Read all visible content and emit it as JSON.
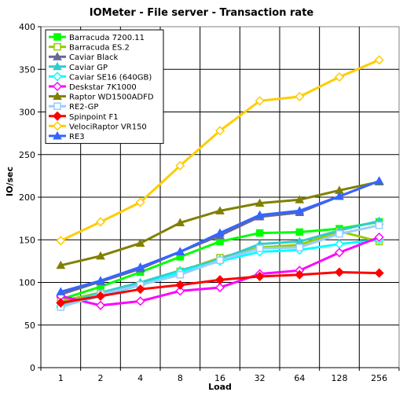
{
  "chart_data": {
    "type": "line",
    "title": "IOMeter - File server - Transaction rate",
    "xlabel": "Load",
    "ylabel": "IO/sec",
    "categories": [
      "1",
      "2",
      "4",
      "8",
      "16",
      "32",
      "64",
      "128",
      "256"
    ],
    "ylim": [
      0,
      400
    ],
    "yticks": [
      "0",
      "50",
      "100",
      "150",
      "200",
      "250",
      "300",
      "350",
      "400"
    ],
    "grid": true,
    "legend_position": "top-left",
    "series": [
      {
        "name": "Barracuda 7200.11",
        "color": "#00ff00",
        "marker": "square-filled",
        "values": [
          80,
          95,
          112,
          130,
          148,
          158,
          159,
          163,
          171
        ]
      },
      {
        "name": "Barracuda ES.2",
        "color": "#99cc00",
        "marker": "square-open",
        "values": [
          78,
          88,
          97,
          113,
          129,
          141,
          144,
          160,
          148
        ]
      },
      {
        "name": "Caviar Black",
        "color": "#666699",
        "marker": "triangle-filled",
        "values": [
          86,
          101,
          116,
          136,
          155,
          177,
          182,
          201,
          219
        ]
      },
      {
        "name": "Caviar GP",
        "color": "#33cccc",
        "marker": "triangle-filled",
        "values": [
          74,
          88,
          100,
          114,
          127,
          145,
          148,
          161,
          172
        ]
      },
      {
        "name": "Caviar SE16 (640GB)",
        "color": "#00ffff",
        "marker": "diamond-open",
        "values": [
          72,
          84,
          97,
          112,
          125,
          136,
          138,
          145,
          150
        ]
      },
      {
        "name": "Deskstar 7K1000",
        "color": "#ff00ff",
        "marker": "diamond-open",
        "values": [
          84,
          73,
          78,
          90,
          94,
          110,
          114,
          135,
          153
        ]
      },
      {
        "name": "Raptor WD1500ADFD",
        "color": "#808000",
        "marker": "triangle-filled",
        "values": [
          120,
          131,
          146,
          170,
          184,
          193,
          197,
          208,
          218
        ]
      },
      {
        "name": "RE2-GP",
        "color": "#99ccff",
        "marker": "square-open",
        "values": [
          71,
          86,
          97,
          109,
          126,
          140,
          141,
          157,
          167
        ]
      },
      {
        "name": "Spinpoint F1",
        "color": "#ff0000",
        "marker": "diamond-filled",
        "values": [
          76,
          84,
          92,
          97,
          103,
          107,
          109,
          112,
          111
        ]
      },
      {
        "name": "VelociRaptor VR150",
        "color": "#ffcc00",
        "marker": "diamond-open",
        "values": [
          149,
          171,
          194,
          237,
          278,
          313,
          318,
          341,
          361
        ]
      },
      {
        "name": "RE3",
        "color": "#3366ff",
        "marker": "triangle-filled",
        "values": [
          89,
          102,
          118,
          136,
          158,
          179,
          184,
          201,
          219
        ]
      }
    ]
  }
}
